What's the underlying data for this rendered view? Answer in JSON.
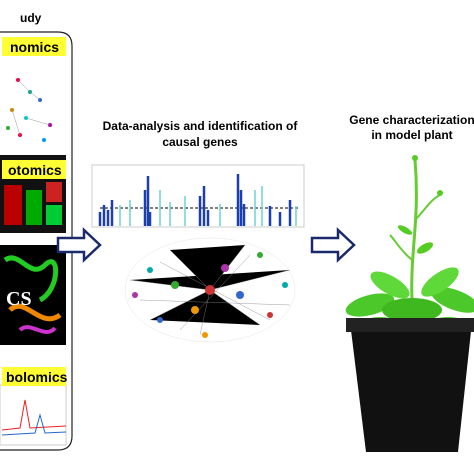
{
  "left_panel": {
    "title": "udy",
    "sections": [
      "nomics",
      "otomics",
      "CS",
      "bolomics"
    ]
  },
  "middle": {
    "title_lines": [
      "Data-analysis and identification of",
      "causal genes"
    ]
  },
  "right": {
    "title_lines": [
      "Gene characterization",
      "in model plant"
    ]
  }
}
